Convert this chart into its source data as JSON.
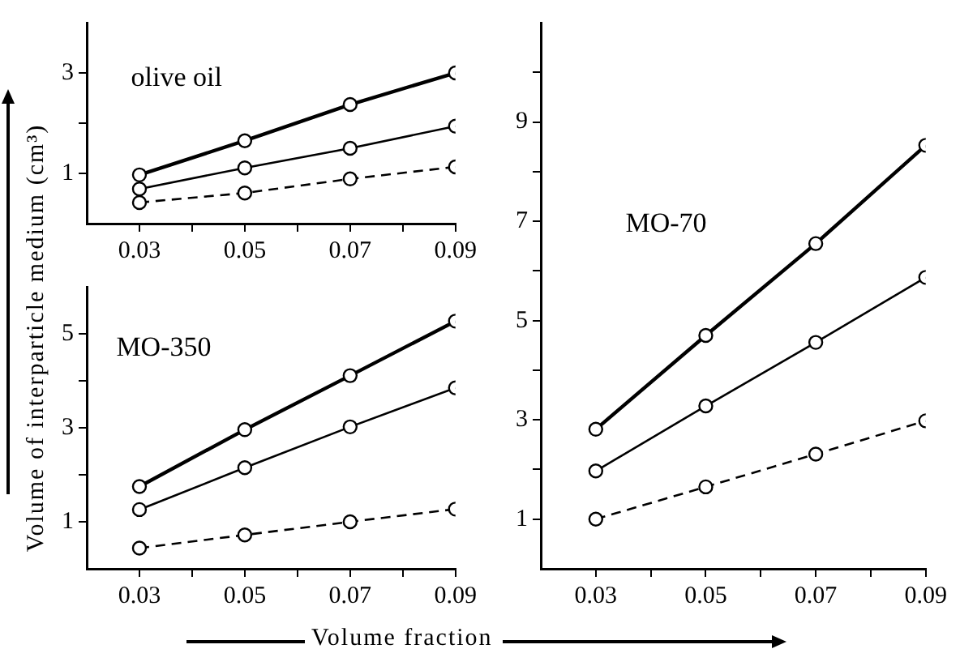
{
  "chart_data": [
    {
      "type": "line",
      "ylabel": "Volume of interparticle medium (cm³)",
      "annotations": [
        "olive oil"
      ],
      "marker": "circle",
      "x": [
        0.03,
        0.05,
        0.07,
        0.09
      ],
      "xlim": [
        0.02,
        0.09
      ],
      "ylim": [
        0,
        4
      ],
      "xticks": [
        0.03,
        {
          "value": 0.04,
          "label": null
        },
        0.05,
        {
          "value": 0.06,
          "label": null
        },
        0.07,
        {
          "value": 0.08,
          "label": null
        },
        0.09
      ],
      "yticks": [
        1,
        {
          "value": 2,
          "label": null
        },
        3
      ],
      "series": [
        {
          "color": "#000000",
          "line_style": "solid",
          "values": [
            0.97,
            1.65,
            2.37,
            3.0
          ]
        },
        {
          "color": "#000000",
          "line_style": "solid",
          "values": [
            0.69,
            1.11,
            1.5,
            1.94
          ]
        },
        {
          "color": "#000000",
          "line_style": "dashed",
          "values": [
            0.42,
            0.61,
            0.89,
            1.13
          ]
        }
      ]
    },
    {
      "type": "line",
      "xlabel": "Volume fraction",
      "annotations": [
        "MO-350"
      ],
      "marker": "circle",
      "x": [
        0.03,
        0.05,
        0.07,
        0.09
      ],
      "xlim": [
        0.02,
        0.09
      ],
      "ylim": [
        0,
        6
      ],
      "xticks": [
        0.03,
        {
          "value": 0.04,
          "label": null
        },
        0.05,
        {
          "value": 0.06,
          "label": null
        },
        0.07,
        {
          "value": 0.08,
          "label": null
        },
        0.09
      ],
      "yticks": [
        1,
        {
          "value": 2,
          "label": null
        },
        3,
        {
          "value": 4,
          "label": null
        },
        5
      ],
      "series": [
        {
          "color": "#000000",
          "line_style": "solid",
          "values": [
            1.75,
            2.96,
            4.11,
            5.27
          ]
        },
        {
          "color": "#000000",
          "line_style": "solid",
          "values": [
            1.26,
            2.15,
            3.02,
            3.85
          ]
        },
        {
          "color": "#000000",
          "line_style": "dashed",
          "values": [
            0.44,
            0.72,
            1.0,
            1.27
          ]
        }
      ]
    },
    {
      "type": "line",
      "annotations": [
        "MO-70"
      ],
      "marker": "circle",
      "x": [
        0.03,
        0.05,
        0.07,
        0.09
      ],
      "xlim": [
        0.02,
        0.09
      ],
      "ylim": [
        0,
        11
      ],
      "xticks": [
        0.03,
        {
          "value": 0.04,
          "label": null
        },
        0.05,
        {
          "value": 0.06,
          "label": null
        },
        0.07,
        {
          "value": 0.08,
          "label": null
        },
        0.09
      ],
      "yticks": [
        1,
        {
          "value": 2,
          "label": null
        },
        3,
        {
          "value": 4,
          "label": null
        },
        5,
        {
          "value": 6,
          "label": null
        },
        7,
        {
          "value": 8,
          "label": null
        },
        9,
        {
          "value": 10,
          "label": null
        }
      ],
      "series": [
        {
          "color": "#000000",
          "line_style": "solid",
          "values": [
            2.81,
            4.7,
            6.55,
            8.53
          ]
        },
        {
          "color": "#000000",
          "line_style": "solid",
          "values": [
            1.97,
            3.28,
            4.56,
            5.87
          ]
        },
        {
          "color": "#000000",
          "line_style": "dashed",
          "values": [
            1.0,
            1.65,
            2.31,
            2.98
          ]
        }
      ]
    }
  ]
}
